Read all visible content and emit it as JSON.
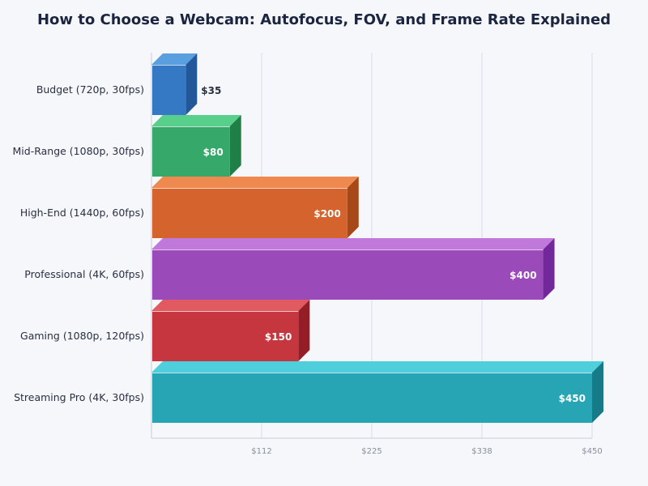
{
  "chart_data": {
    "type": "bar",
    "orientation": "horizontal",
    "style": "3d",
    "title": "How to Choose a Webcam: Autofocus, FOV, and Frame Rate Explained",
    "categories": [
      "Budget (720p, 30fps)",
      "Mid-Range (1080p, 30fps)",
      "High-End (1440p, 60fps)",
      "Professional (4K, 60fps)",
      "Gaming (1080p, 120fps)",
      "Streaming Pro (4K, 30fps)"
    ],
    "values": [
      35,
      80,
      200,
      400,
      150,
      450
    ],
    "data_labels": [
      "$35",
      "$80",
      "$200",
      "$400",
      "$150",
      "$450"
    ],
    "colors": [
      "#3578c4",
      "#36a96a",
      "#d4632d",
      "#9a4bb9",
      "#c5363e",
      "#27a5b4"
    ],
    "top_colors": [
      "#5a9fe0",
      "#58cf8a",
      "#ee8a50",
      "#c178db",
      "#e05a60",
      "#4fcfdb"
    ],
    "side_colors": [
      "#22579a",
      "#1f8047",
      "#a64818",
      "#72289a",
      "#951d25",
      "#167b86"
    ],
    "xlim": [
      0,
      450
    ],
    "xticks": [
      112.5,
      225,
      337.5,
      450
    ],
    "xtick_labels": [
      "$112",
      "$225",
      "$338",
      "$450"
    ],
    "xlabel": "",
    "ylabel": "",
    "grid": true
  }
}
